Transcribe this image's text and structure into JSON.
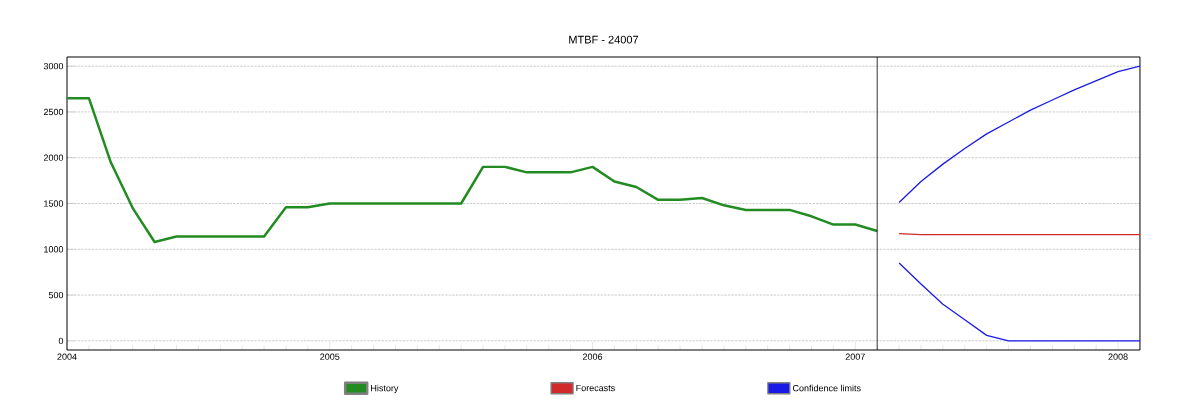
{
  "chart_data": {
    "type": "line",
    "title": "MTBF - 24007",
    "x": [
      "2004-01",
      "2004-02",
      "2004-03",
      "2004-04",
      "2004-05",
      "2004-06",
      "2004-07",
      "2004-08",
      "2004-09",
      "2004-10",
      "2004-11",
      "2004-12",
      "2005-01",
      "2005-02",
      "2005-03",
      "2005-04",
      "2005-05",
      "2005-06",
      "2005-07",
      "2005-08",
      "2005-09",
      "2005-10",
      "2005-11",
      "2005-12",
      "2006-01",
      "2006-02",
      "2006-03",
      "2006-04",
      "2006-05",
      "2006-06",
      "2006-07",
      "2006-08",
      "2006-09",
      "2006-10",
      "2006-11",
      "2006-12",
      "2007-01",
      "2007-02"
    ],
    "series": [
      {
        "name": "History",
        "color": "#228b22",
        "values": [
          2650,
          2650,
          1950,
          1450,
          1080,
          1140,
          1140,
          1140,
          1140,
          1140,
          1460,
          1460,
          1500,
          1500,
          1500,
          1500,
          1500,
          1500,
          1500,
          1900,
          1900,
          1840,
          1840,
          1840,
          1900,
          1740,
          1680,
          1540,
          1540,
          1560,
          1480,
          1430,
          1430,
          1430,
          1360,
          1270,
          1270,
          1200
        ]
      },
      {
        "name": "Forecasts",
        "color": "#d02a2a",
        "x": [
          "2007-03",
          "2007-04",
          "2007-05",
          "2007-06",
          "2007-07",
          "2007-08",
          "2007-09",
          "2007-10",
          "2007-11",
          "2007-12",
          "2008-01",
          "2008-02"
        ],
        "values": [
          1170,
          1160,
          1160,
          1160,
          1160,
          1160,
          1160,
          1160,
          1160,
          1160,
          1160,
          1160
        ]
      },
      {
        "name": "Confidence limits",
        "color": "#1a1ae6",
        "x": [
          "2007-03",
          "2007-04",
          "2007-05",
          "2007-06",
          "2007-07",
          "2007-08",
          "2007-09",
          "2007-10",
          "2007-11",
          "2007-12",
          "2008-01",
          "2008-02"
        ],
        "values": [
          1510,
          1740,
          1930,
          2100,
          2260,
          2390,
          2520,
          2630,
          2740,
          2840,
          2940,
          3000
        ]
      },
      {
        "color": "#1a1ae6",
        "x": [
          "2007-03",
          "2007-04",
          "2007-05",
          "2007-06",
          "2007-07",
          "2007-08",
          "2007-09",
          "2007-10",
          "2007-11",
          "2007-12",
          "2008-01",
          "2008-02"
        ],
        "values": [
          850,
          620,
          400,
          230,
          60,
          0,
          0,
          0,
          0,
          0,
          0,
          0
        ]
      }
    ],
    "xlim": [
      "2004-01",
      "2008-02"
    ],
    "xticks": [
      {
        "value": "2004-01",
        "label": "2004"
      },
      {
        "value": "2005-01",
        "label": "2005"
      },
      {
        "value": "2006-01",
        "label": "2006"
      },
      {
        "value": "2007-01",
        "label": "2007"
      },
      {
        "value": "2008-01",
        "label": "2008"
      }
    ],
    "ylim": [
      -100,
      3100
    ],
    "yticks": [
      0,
      500,
      1000,
      1500,
      2000,
      2500,
      3000
    ],
    "ref_lines": [
      {
        "axis": "x",
        "value": "2007-02",
        "color": "#000000"
      }
    ],
    "grid": "y",
    "legend": "bottom",
    "marker": "none",
    "line_style": "solid"
  }
}
